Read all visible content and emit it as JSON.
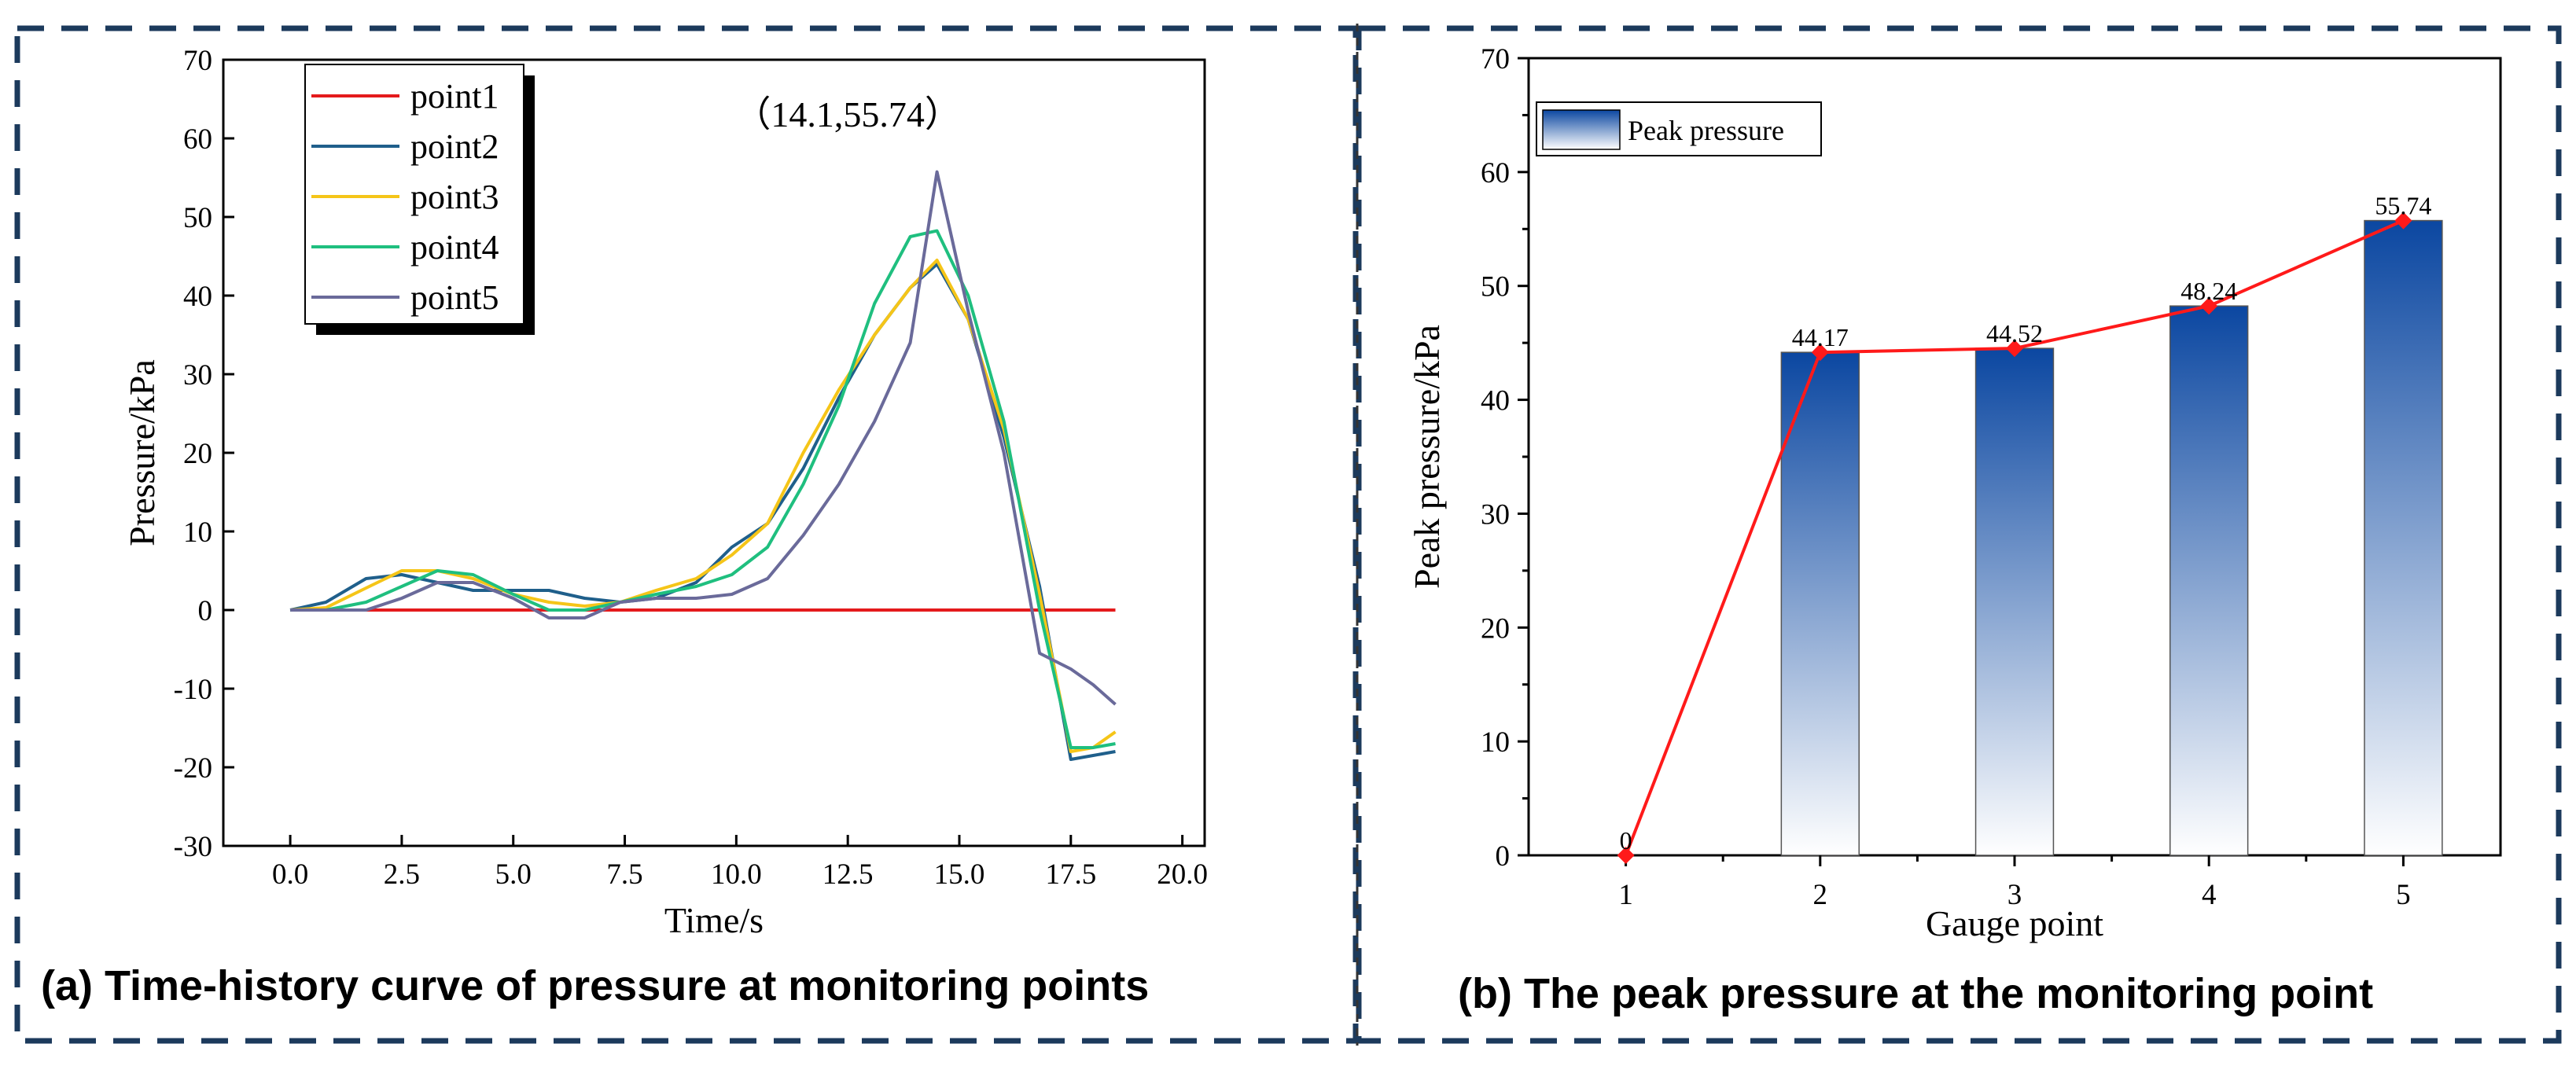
{
  "panels": {
    "a_caption": "(a) Time-history curve of pressure at monitoring points",
    "b_caption": "(b) The peak pressure at the monitoring point"
  },
  "colors": {
    "frame": "#1c3a5c",
    "point1": "#e41a1c",
    "point2": "#1f5f8b",
    "point3": "#f5c518",
    "point4": "#1fbf7f",
    "point5": "#6a6a9a",
    "bar_top": "#0b47a1",
    "bar_bottom": "#ffffff",
    "peak_line": "#ff1a1a"
  },
  "chart_data": [
    {
      "type": "line",
      "title": "",
      "xlabel": "Time/s",
      "ylabel": "Pressure/kPa",
      "xlim": [
        -1.5,
        20.5
      ],
      "ylim": [
        -30,
        70
      ],
      "xticks": [
        0.0,
        2.5,
        5.0,
        7.5,
        10.0,
        12.5,
        15.0,
        17.5,
        20.0
      ],
      "xtick_labels": [
        "0.0",
        "2.5",
        "5.0",
        "7.5",
        "10.0",
        "12.5",
        "15.0",
        "17.5",
        "20.0"
      ],
      "yticks": [
        -30,
        -20,
        -10,
        0,
        10,
        20,
        30,
        40,
        50,
        60,
        70
      ],
      "ytick_labels": [
        "-30",
        "-20",
        "-10",
        "0",
        "10",
        "20",
        "30",
        "40",
        "50",
        "60",
        "70"
      ],
      "legend_position": "top-left",
      "annotation": "（14.1,55.74）",
      "annotation_at": [
        12.5,
        61.5
      ],
      "series": [
        {
          "name": "point1",
          "x": [
            0,
            18.5
          ],
          "values": [
            0,
            0
          ]
        },
        {
          "name": "point2",
          "x": [
            0,
            0.8,
            1.7,
            2.5,
            3.3,
            4.1,
            5.0,
            5.8,
            6.6,
            7.4,
            8.2,
            9.1,
            9.9,
            10.7,
            11.5,
            12.3,
            13.1,
            13.9,
            14.5,
            15.2,
            16.0,
            16.8,
            17.5,
            18.0,
            18.5
          ],
          "values": [
            0,
            1,
            4,
            4.5,
            3.5,
            2.5,
            2.5,
            2.5,
            1.5,
            1,
            1.5,
            3.5,
            8,
            11,
            18,
            27,
            35,
            41,
            44,
            37,
            22,
            3,
            -19,
            -18.5,
            -18
          ]
        },
        {
          "name": "point3",
          "x": [
            0,
            0.8,
            1.7,
            2.5,
            3.3,
            4.1,
            5.0,
            5.8,
            6.6,
            7.4,
            8.2,
            9.1,
            9.9,
            10.7,
            11.5,
            12.3,
            13.1,
            13.9,
            14.5,
            15.2,
            16.0,
            16.8,
            17.5,
            18.0,
            18.5
          ],
          "values": [
            0,
            0.3,
            2.8,
            5,
            5,
            4,
            2,
            1,
            0.5,
            1,
            2.5,
            4,
            7,
            11,
            20,
            28,
            35,
            41,
            44.5,
            37,
            23,
            2,
            -18,
            -17.5,
            -15.5
          ]
        },
        {
          "name": "point4",
          "x": [
            0,
            0.8,
            1.7,
            2.5,
            3.3,
            4.1,
            5.0,
            5.8,
            6.6,
            7.4,
            8.2,
            9.1,
            9.9,
            10.7,
            11.5,
            12.3,
            13.1,
            13.9,
            14.5,
            15.2,
            16.0,
            16.8,
            17.5,
            18.0,
            18.5
          ],
          "values": [
            0,
            0,
            1,
            3,
            5,
            4.5,
            2,
            0,
            0,
            1,
            2,
            3,
            4.5,
            8,
            16,
            26,
            39,
            47.5,
            48.24,
            40,
            24,
            0,
            -17.5,
            -17.5,
            -17
          ]
        },
        {
          "name": "point5",
          "x": [
            0,
            0.8,
            1.7,
            2.5,
            3.3,
            4.1,
            5.0,
            5.8,
            6.6,
            7.4,
            8.2,
            9.1,
            9.9,
            10.7,
            11.5,
            12.3,
            13.1,
            13.9,
            14.5,
            15.2,
            16.0,
            16.8,
            17.5,
            18.0,
            18.5
          ],
          "values": [
            0,
            0,
            0,
            1.5,
            3.5,
            3.5,
            1.5,
            -1,
            -1,
            1,
            1.5,
            1.5,
            2,
            4,
            9.5,
            16,
            24,
            34,
            55.74,
            38,
            20,
            -5.5,
            -7.5,
            -9.5,
            -12
          ]
        }
      ]
    },
    {
      "type": "bar",
      "title": "",
      "xlabel": "Gauge point",
      "ylabel": "Peak pressure/kPa",
      "xlim": [
        0.5,
        5.5
      ],
      "ylim": [
        0,
        70
      ],
      "categories": [
        "1",
        "2",
        "3",
        "4",
        "5"
      ],
      "yticks": [
        0,
        10,
        20,
        30,
        40,
        50,
        60,
        70
      ],
      "ytick_labels": [
        "0",
        "10",
        "20",
        "30",
        "40",
        "50",
        "60",
        "70"
      ],
      "legend_position": "top-left",
      "series": [
        {
          "name": "Peak pressure",
          "values": [
            0,
            44.17,
            44.52,
            48.24,
            55.74
          ],
          "labels": [
            "0",
            "44.17",
            "44.52",
            "48.24",
            "55.74"
          ]
        }
      ]
    }
  ]
}
